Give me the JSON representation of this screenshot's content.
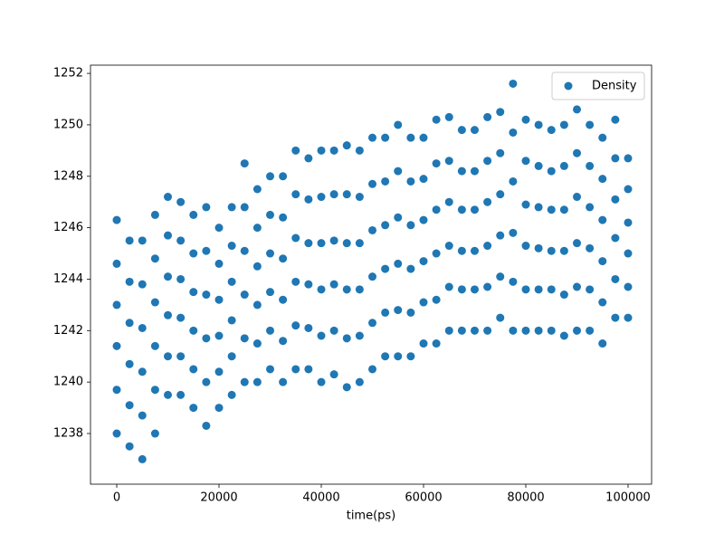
{
  "chart_data": {
    "type": "scatter",
    "xlabel": "time(ps)",
    "legend": "upper right",
    "grid": false,
    "xlim": [
      -5133,
      104602
    ],
    "ylim": [
      1236.03,
      1252.32
    ],
    "xticks": [
      0,
      20000,
      40000,
      60000,
      80000,
      100000
    ],
    "yticks": [
      1238,
      1240,
      1242,
      1244,
      1246,
      1248,
      1250,
      1252
    ],
    "series": [
      {
        "name": "Density",
        "color": "#1f77b4",
        "x": [
          0,
          0,
          0,
          0,
          0,
          0,
          2500,
          2500,
          2500,
          2500,
          2500,
          2500,
          5000,
          5000,
          5000,
          5000,
          5000,
          5000,
          7500,
          7500,
          7500,
          7500,
          7500,
          7500,
          10000,
          10000,
          10000,
          10000,
          10000,
          10000,
          12500,
          12500,
          12500,
          12500,
          12500,
          12500,
          15000,
          15000,
          15000,
          15000,
          15000,
          15000,
          17500,
          17500,
          17500,
          17500,
          17500,
          17500,
          20000,
          20000,
          20000,
          20000,
          20000,
          20000,
          22500,
          22500,
          22500,
          22500,
          22500,
          22500,
          25000,
          25000,
          25000,
          25000,
          25000,
          25000,
          27500,
          27500,
          27500,
          27500,
          27500,
          27500,
          30000,
          30000,
          30000,
          30000,
          30000,
          30000,
          32500,
          32500,
          32500,
          32500,
          32500,
          32500,
          35000,
          35000,
          35000,
          35000,
          35000,
          35000,
          37500,
          37500,
          37500,
          37500,
          37500,
          37500,
          40000,
          40000,
          40000,
          40000,
          40000,
          40000,
          42500,
          42500,
          42500,
          42500,
          42500,
          42500,
          45000,
          45000,
          45000,
          45000,
          45000,
          45000,
          47500,
          47500,
          47500,
          47500,
          47500,
          47500,
          50000,
          50000,
          50000,
          50000,
          50000,
          50000,
          52500,
          52500,
          52500,
          52500,
          52500,
          52500,
          55000,
          55000,
          55000,
          55000,
          55000,
          55000,
          57500,
          57500,
          57500,
          57500,
          57500,
          57500,
          60000,
          60000,
          60000,
          60000,
          60000,
          60000,
          62500,
          62500,
          62500,
          62500,
          62500,
          62500,
          65000,
          65000,
          65000,
          65000,
          65000,
          65000,
          67500,
          67500,
          67500,
          67500,
          67500,
          67500,
          70000,
          70000,
          70000,
          70000,
          70000,
          70000,
          72500,
          72500,
          72500,
          72500,
          72500,
          72500,
          75000,
          75000,
          75000,
          75000,
          75000,
          75000,
          77500,
          77500,
          77500,
          77500,
          77500,
          77500,
          80000,
          80000,
          80000,
          80000,
          80000,
          80000,
          82500,
          82500,
          82500,
          82500,
          82500,
          82500,
          85000,
          85000,
          85000,
          85000,
          85000,
          85000,
          87500,
          87500,
          87500,
          87500,
          87500,
          87500,
          90000,
          90000,
          90000,
          90000,
          90000,
          90000,
          92500,
          92500,
          92500,
          92500,
          92500,
          92500,
          95000,
          95000,
          95000,
          95000,
          95000,
          95000,
          97500,
          97500,
          97500,
          97500,
          97500,
          97500,
          100000,
          100000,
          100000,
          100000,
          100000,
          100000
        ],
        "values": [
          1238.0,
          1239.7,
          1241.4,
          1243.0,
          1244.6,
          1246.3,
          1237.5,
          1239.1,
          1240.7,
          1242.3,
          1243.9,
          1245.5,
          1237.0,
          1238.7,
          1240.4,
          1242.1,
          1243.8,
          1245.5,
          1238.0,
          1239.7,
          1241.4,
          1243.1,
          1244.8,
          1246.5,
          1239.5,
          1241.0,
          1242.6,
          1244.1,
          1245.7,
          1247.2,
          1239.5,
          1241.0,
          1242.5,
          1244.0,
          1245.5,
          1247.0,
          1239.0,
          1240.5,
          1242.0,
          1243.5,
          1245.0,
          1246.5,
          1238.3,
          1240.0,
          1241.7,
          1243.4,
          1245.1,
          1246.8,
          1239.0,
          1240.4,
          1241.8,
          1243.2,
          1244.6,
          1246.0,
          1239.5,
          1241.0,
          1242.4,
          1243.9,
          1245.3,
          1246.8,
          1240.0,
          1241.7,
          1243.4,
          1245.1,
          1246.8,
          1248.5,
          1240.0,
          1241.5,
          1243.0,
          1244.5,
          1246.0,
          1247.5,
          1240.5,
          1242.0,
          1243.5,
          1245.0,
          1246.5,
          1248.0,
          1240.0,
          1241.6,
          1243.2,
          1244.8,
          1246.4,
          1248.0,
          1240.5,
          1242.2,
          1243.9,
          1245.6,
          1247.3,
          1249.0,
          1240.5,
          1242.1,
          1243.8,
          1245.4,
          1247.1,
          1248.7,
          1240.0,
          1241.8,
          1243.6,
          1245.4,
          1247.2,
          1249.0,
          1240.3,
          1242.0,
          1243.8,
          1245.5,
          1247.3,
          1249.0,
          1239.8,
          1241.7,
          1243.6,
          1245.4,
          1247.3,
          1249.2,
          1240.0,
          1241.8,
          1243.6,
          1245.4,
          1247.2,
          1249.0,
          1240.5,
          1242.3,
          1244.1,
          1245.9,
          1247.7,
          1249.5,
          1241.0,
          1242.7,
          1244.4,
          1246.1,
          1247.8,
          1249.5,
          1241.0,
          1242.8,
          1244.6,
          1246.4,
          1248.2,
          1250.0,
          1241.0,
          1242.7,
          1244.4,
          1246.1,
          1247.8,
          1249.5,
          1241.5,
          1243.1,
          1244.7,
          1246.3,
          1247.9,
          1249.5,
          1241.5,
          1243.2,
          1245.0,
          1246.7,
          1248.5,
          1250.2,
          1242.0,
          1243.7,
          1245.3,
          1247.0,
          1248.6,
          1250.3,
          1242.0,
          1243.6,
          1245.1,
          1246.7,
          1248.2,
          1249.8,
          1242.0,
          1243.6,
          1245.1,
          1246.7,
          1248.2,
          1249.8,
          1242.0,
          1243.7,
          1245.3,
          1247.0,
          1248.6,
          1250.3,
          1242.5,
          1244.1,
          1245.7,
          1247.3,
          1248.9,
          1250.5,
          1242.0,
          1243.9,
          1245.8,
          1247.8,
          1249.7,
          1251.6,
          1242.0,
          1243.6,
          1245.3,
          1246.9,
          1248.6,
          1250.2,
          1242.0,
          1243.6,
          1245.2,
          1246.8,
          1248.4,
          1250.0,
          1242.0,
          1243.6,
          1245.1,
          1246.7,
          1248.2,
          1249.8,
          1241.8,
          1243.4,
          1245.1,
          1246.7,
          1248.4,
          1250.0,
          1242.0,
          1243.7,
          1245.4,
          1247.2,
          1248.9,
          1250.6,
          1242.0,
          1243.6,
          1245.2,
          1246.8,
          1248.4,
          1250.0,
          1241.5,
          1243.1,
          1244.7,
          1246.3,
          1247.9,
          1249.5,
          1242.5,
          1244.0,
          1245.6,
          1247.1,
          1248.7,
          1250.2,
          1242.5,
          1243.7,
          1245.0,
          1246.2,
          1247.5,
          1248.7
        ]
      }
    ]
  }
}
